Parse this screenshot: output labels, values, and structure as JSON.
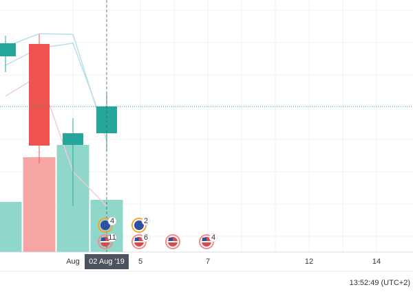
{
  "chart_data": {
    "type": "candlestick",
    "categories": [
      null,
      null,
      "Aug",
      "02 Aug '19",
      "5",
      null,
      "7",
      null,
      null,
      "12",
      null,
      "14"
    ],
    "open": [
      28.5,
      30.3,
      15.6,
      17.3,
      null,
      null,
      null,
      null,
      null,
      null,
      null,
      null
    ],
    "close": [
      30.4,
      15.5,
      17.3,
      21.2,
      null,
      null,
      null,
      null,
      null,
      null,
      null,
      null
    ],
    "high": [
      31.5,
      31.7,
      19.5,
      23.2,
      null,
      null,
      null,
      null,
      null,
      null,
      null,
      null
    ],
    "low": [
      26.2,
      12.9,
      6.7,
      14.7,
      null,
      null,
      null,
      null,
      null,
      null,
      null,
      null
    ],
    "up_color": "#26a69a",
    "down_color": "#ef5350",
    "volume": [
      7.3,
      13.8,
      15.6,
      7.6,
      null,
      null,
      null,
      null,
      null,
      null,
      null,
      null
    ],
    "volume_up_color": "#8fd6cb",
    "volume_down_color": "#f6a4a4",
    "ylim": [
      0,
      36.7
    ],
    "lines": [
      {
        "color": "#b7dfe6",
        "values": [
          29.9,
          31.8,
          31.7,
          16.2,
          null,
          null,
          null,
          null,
          null,
          null,
          null,
          null
        ]
      },
      {
        "color": "#c2dbe8",
        "values": [
          27.2,
          29.7,
          30.4,
          17.2,
          null,
          null,
          null,
          null,
          null,
          null,
          null,
          null
        ]
      },
      {
        "color": "#f2cbd6",
        "values": [
          22.7,
          25.7,
          11.7,
          6.7,
          null,
          null,
          null,
          null,
          null,
          null,
          null,
          null
        ]
      }
    ],
    "crosshair_value": 21.2,
    "events": [
      {
        "x": 3,
        "flag": "eu",
        "label": "4"
      },
      {
        "x": 3,
        "flag": "us",
        "label": "11"
      },
      {
        "x": 4,
        "flag": "eu",
        "label": "2"
      },
      {
        "x": 4,
        "flag": "us",
        "label": "6"
      },
      {
        "x": 5,
        "flag": "us"
      },
      {
        "x": 6,
        "flag": "us",
        "label": "4"
      }
    ],
    "time": "13:52:49 (UTC+2)",
    "grid": true
  }
}
